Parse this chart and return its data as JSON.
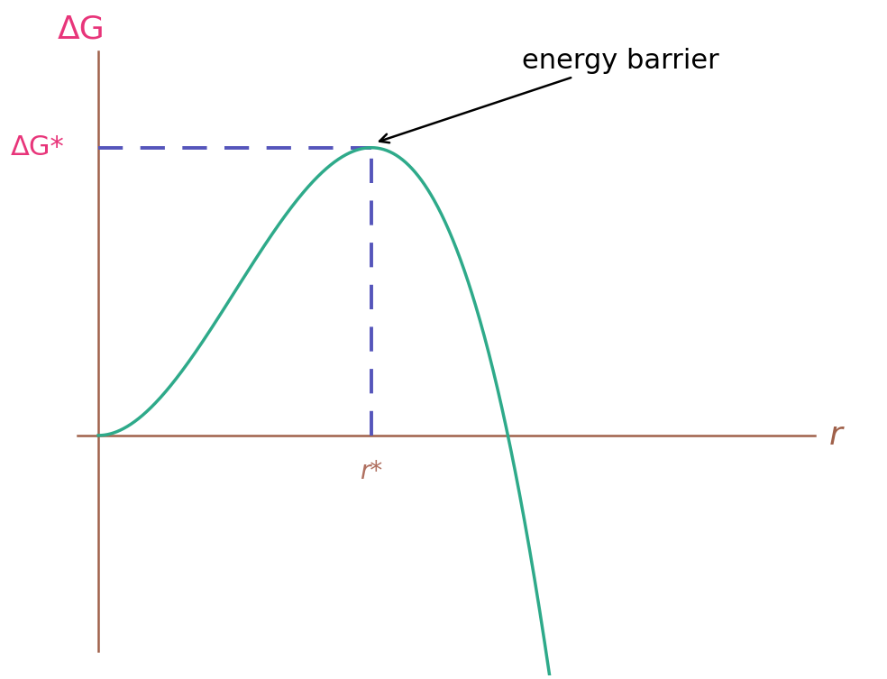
{
  "xlabel": "r",
  "ylabel": "ΔG",
  "axis_color": "#A0614A",
  "curve_color": "#2EAA8A",
  "dashed_color": "#5555BB",
  "label_color_y": "#E8357A",
  "label_color_x": "#A0614A",
  "rstar_label_color": "#B07060",
  "annotation_text": "energy barrier",
  "dg_star_label": "ΔG*",
  "r_star_label": "r*",
  "annotation_fontsize": 22,
  "axis_label_fontsize": 26,
  "dg_star_fontsize": 22,
  "rstar_fontsize": 20
}
